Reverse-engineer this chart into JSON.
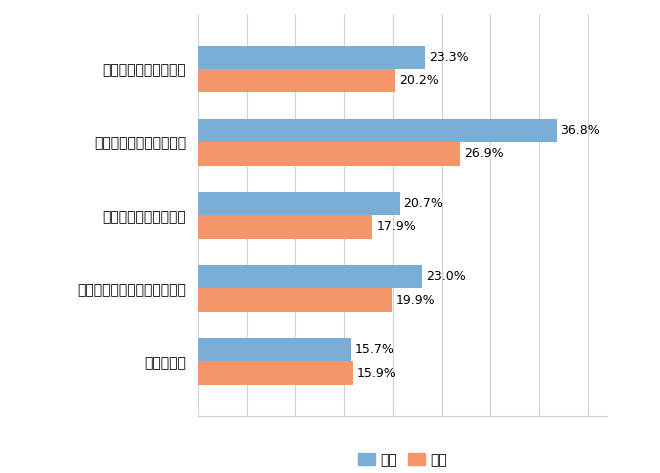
{
  "categories": [
    "役職の降格",
    "望まない上司のもとへの異動",
    "望まない部署への異動",
    "望まない勤務地への異動",
    "望まない職種への異動"
  ],
  "female_values": [
    15.7,
    23.0,
    20.7,
    36.8,
    23.3
  ],
  "male_values": [
    15.9,
    19.9,
    17.9,
    26.9,
    20.2
  ],
  "female_color": "#7aaed6",
  "male_color": "#f4956a",
  "female_label": "女性",
  "male_label": "男性",
  "xlim": [
    0,
    42
  ],
  "bar_height": 0.32,
  "background_color": "#ffffff",
  "grid_color": "#d0d0d0",
  "text_color": "#000000",
  "label_fontsize": 10,
  "value_fontsize": 9,
  "legend_fontsize": 10
}
